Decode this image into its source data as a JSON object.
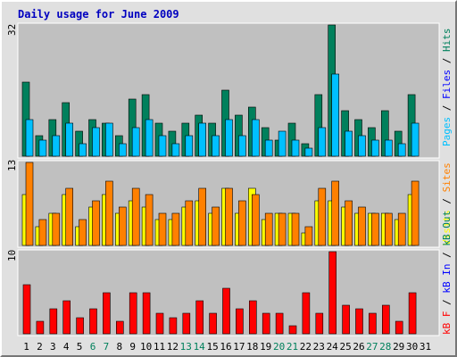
{
  "title": "Daily usage for June 2009",
  "colors": {
    "hits": "#00805c",
    "files": "#00c0ff",
    "pages": "#00c0ff",
    "sites": "#ff8000",
    "visits": "#ffff00",
    "kb_in": "#0000ff",
    "kb_out": "#00805c",
    "kb_f": "#ff0000",
    "title": "#0000c0",
    "weekend_label": "#00805c",
    "weekday_label": "#000000"
  },
  "right_labels": {
    "top": [
      {
        "text": "Pages",
        "color": "#00c0ff"
      },
      {
        "text": " / ",
        "color": "#000000"
      },
      {
        "text": "Files",
        "color": "#0000ff"
      },
      {
        "text": " / ",
        "color": "#000000"
      },
      {
        "text": "Hits",
        "color": "#00805c"
      }
    ],
    "mid": [
      {
        "text": "Visits",
        "color": "#ffff00"
      },
      {
        "text": " / ",
        "color": "#000000"
      },
      {
        "text": "Sites",
        "color": "#ff8000"
      }
    ],
    "bot": [
      {
        "text": "kB F",
        "color": "#ff0000"
      },
      {
        "text": " / ",
        "color": "#000000"
      },
      {
        "text": "kB In",
        "color": "#0000ff"
      },
      {
        "text": " / ",
        "color": "#000000"
      },
      {
        "text": "kB Out",
        "color": "#00805c"
      }
    ]
  },
  "chart_data": {
    "type": "bar",
    "title": "Daily usage for June 2009",
    "days": [
      "1",
      "2",
      "3",
      "4",
      "5",
      "6",
      "7",
      "8",
      "9",
      "10",
      "11",
      "12",
      "13",
      "14",
      "15",
      "16",
      "17",
      "18",
      "19",
      "20",
      "21",
      "22",
      "23",
      "24",
      "25",
      "26",
      "27",
      "28",
      "29",
      "30",
      "31"
    ],
    "weekend_days": [
      6,
      7,
      13,
      14,
      20,
      21,
      27,
      28
    ],
    "panels": [
      {
        "name": "hits-files-pages",
        "ymax_label": "32",
        "ymax": 32,
        "series": [
          {
            "name": "Hits",
            "values": [
              18,
              5,
              9,
              13,
              6,
              9,
              8,
              5,
              14,
              15,
              8,
              6,
              8,
              10,
              8,
              16,
              10,
              12,
              7,
              4,
              8,
              3,
              15,
              32,
              11,
              9,
              7,
              11,
              6,
              15,
              0
            ]
          },
          {
            "name": "Files",
            "values": [
              9,
              4,
              5,
              8,
              3,
              7,
              8,
              3,
              7,
              9,
              5,
              3,
              5,
              8,
              5,
              9,
              5,
              9,
              4,
              6,
              4,
              2,
              7,
              20,
              6,
              5,
              4,
              4,
              3,
              8,
              0
            ]
          }
        ]
      },
      {
        "name": "visits-sites",
        "ymax_label": "13",
        "ymax": 13,
        "series": [
          {
            "name": "Visits",
            "values": [
              8,
              3,
              5,
              8,
              3,
              6,
              8,
              5,
              7,
              6,
              4,
              4,
              6,
              7,
              5,
              9,
              5,
              9,
              4,
              5,
              5,
              2,
              7,
              7,
              6,
              5,
              5,
              5,
              4,
              8,
              0
            ]
          },
          {
            "name": "Sites",
            "values": [
              13,
              4,
              5,
              9,
              4,
              7,
              10,
              6,
              9,
              8,
              5,
              5,
              7,
              9,
              6,
              9,
              7,
              8,
              5,
              5,
              5,
              3,
              9,
              10,
              7,
              6,
              5,
              5,
              5,
              10,
              0
            ]
          }
        ]
      },
      {
        "name": "kbytes",
        "ymax_label": "10",
        "ymax": 10,
        "series": [
          {
            "name": "kB F",
            "values": [
              6,
              1.5,
              3,
              4,
              2,
              3,
              5,
              1.5,
              5,
              5,
              2.5,
              2,
              2.5,
              4,
              2.5,
              5.5,
              3,
              4,
              2.5,
              2.5,
              1,
              5,
              2.5,
              10,
              3.5,
              3,
              2.5,
              3.5,
              1.5,
              5,
              0
            ]
          }
        ]
      }
    ]
  }
}
